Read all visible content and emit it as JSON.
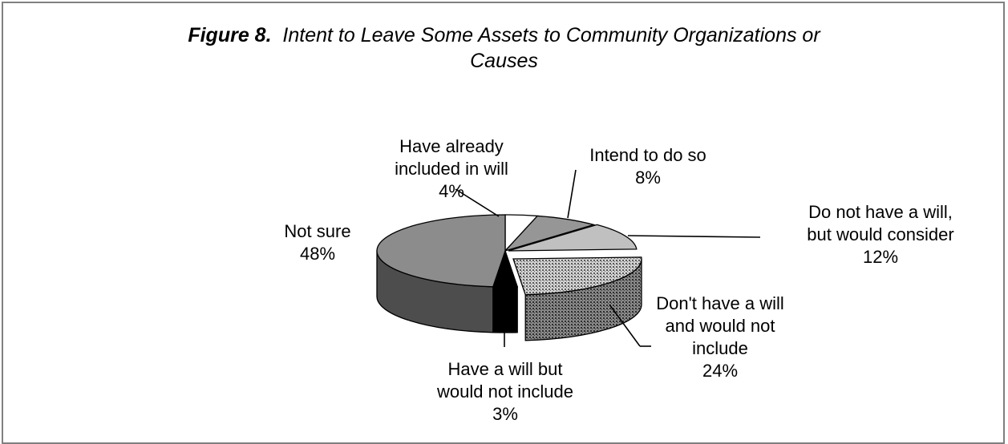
{
  "chart_data": {
    "type": "pie",
    "figure_label": "Figure 8.",
    "title_line1": "Intent to Leave Some Assets to Community Organizations or",
    "title_line2": "Causes",
    "slices": [
      {
        "label_lines": [
          "Have already",
          "included in will"
        ],
        "percent_text": "4%",
        "value": 4,
        "color": "#ffffff"
      },
      {
        "label_lines": [
          "Intend to do so"
        ],
        "percent_text": "8%",
        "value": 8,
        "color": "#969696"
      },
      {
        "label_lines": [
          "Do not have a will,",
          "but would consider"
        ],
        "percent_text": "12%",
        "value": 12,
        "color": "#c0c0c0"
      },
      {
        "label_lines": [
          "Don't have a will",
          "and would not",
          "include"
        ],
        "percent_text": "24%",
        "value": 24,
        "color": "#b4b4b4",
        "pattern": "dots"
      },
      {
        "label_lines": [
          "Have a will but",
          "would not include"
        ],
        "percent_text": "3%",
        "value": 3,
        "color": "#000000"
      },
      {
        "label_lines": [
          "Not sure"
        ],
        "percent_text": "48%",
        "value": 48,
        "color": "#8c8c8c"
      }
    ]
  }
}
